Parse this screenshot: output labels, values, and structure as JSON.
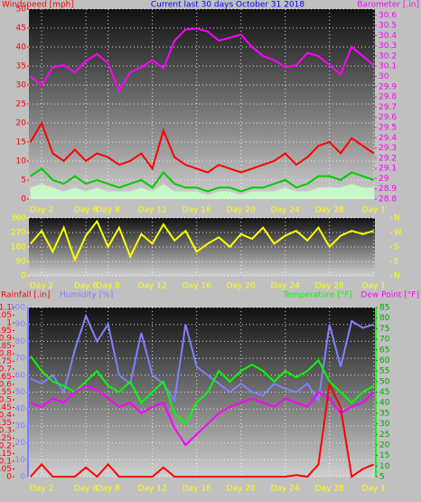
{
  "chart_data": [
    {
      "type": "line",
      "title": "Current last 30 days October 31 2018",
      "y_label": "Windspeed [mph]",
      "y2_label": "Barometer [.in]",
      "x": [
        1,
        2,
        3,
        4,
        5,
        6,
        7,
        8,
        9,
        10,
        11,
        12,
        13,
        14,
        15,
        16,
        17,
        18,
        19,
        20,
        21,
        22,
        23,
        24,
        25,
        26,
        27,
        28,
        29,
        30,
        31,
        32
      ],
      "xlim": [
        0.85,
        32.1
      ],
      "xticks": [
        {
          "value": 2,
          "label": "Day 2"
        },
        {
          "value": 6,
          "label": "Day 6"
        },
        {
          "value": 8,
          "label": "Day 8"
        },
        {
          "value": 12,
          "label": "Day 12"
        },
        {
          "value": 16,
          "label": "Day 16"
        },
        {
          "value": 20,
          "label": "Day 20"
        },
        {
          "value": 24,
          "label": "Day 24"
        },
        {
          "value": 28,
          "label": "Day 28"
        },
        {
          "value": 32,
          "label": "Day 1"
        }
      ],
      "ylim": [
        0,
        50
      ],
      "yticks": [
        0,
        5,
        10,
        15,
        20,
        25,
        30,
        35,
        40,
        45,
        50
      ],
      "y2lim": [
        28.8,
        30.66
      ],
      "y2ticks": [
        28.8,
        28.9,
        29,
        29.1,
        29.2,
        29.3,
        29.4,
        29.5,
        29.6,
        29.7,
        29.8,
        29.9,
        30,
        30.1,
        30.2,
        30.3,
        30.4,
        30.5,
        30.6
      ],
      "grid": true,
      "series": [
        {
          "color": "#c8ffc8",
          "style": "area",
          "values": [
            3,
            4,
            3,
            2,
            3,
            2,
            3,
            2,
            2,
            2,
            3,
            2,
            4,
            2,
            2,
            2,
            1,
            2,
            2,
            1,
            2,
            2,
            2,
            3,
            2,
            2,
            3,
            3,
            3,
            4,
            3,
            3
          ]
        },
        {
          "color": "#ff0000",
          "values": [
            15,
            20,
            12,
            10,
            13,
            10,
            12,
            11,
            9,
            10,
            12,
            8,
            18,
            11,
            9,
            8,
            7,
            9,
            8,
            7,
            8,
            9,
            10,
            12,
            9,
            11,
            14,
            15,
            12,
            16,
            14,
            12
          ]
        },
        {
          "color": "#00cc00",
          "values": [
            6,
            8,
            5,
            4,
            6,
            4,
            5,
            4,
            3,
            4,
            5,
            3,
            7,
            4,
            3,
            3,
            2,
            3,
            3,
            2,
            3,
            3,
            4,
            5,
            3,
            4,
            6,
            6,
            5,
            7,
            6,
            5
          ]
        },
        {
          "color": "#ff00ff",
          "axis": "y2",
          "values": [
            30.0,
            29.91,
            30.09,
            30.11,
            30.04,
            30.15,
            30.22,
            30.13,
            29.86,
            30.04,
            30.09,
            30.16,
            30.08,
            30.35,
            30.46,
            30.47,
            30.44,
            30.35,
            30.38,
            30.41,
            30.29,
            30.2,
            30.16,
            30.09,
            30.11,
            30.23,
            30.2,
            30.11,
            30.02,
            30.29,
            30.2,
            30.11
          ]
        }
      ]
    },
    {
      "type": "line",
      "x": [
        1,
        2,
        3,
        4,
        5,
        6,
        7,
        8,
        9,
        10,
        11,
        12,
        13,
        14,
        15,
        16,
        17,
        18,
        19,
        20,
        21,
        22,
        23,
        24,
        25,
        26,
        27,
        28,
        29,
        30,
        31,
        32
      ],
      "xlim": [
        0.85,
        32.1
      ],
      "xticks": [
        {
          "value": 2,
          "label": "Day 2"
        },
        {
          "value": 6,
          "label": "Day 6"
        },
        {
          "value": 8,
          "label": "Day 8"
        },
        {
          "value": 12,
          "label": "Day 12"
        },
        {
          "value": 16,
          "label": "Day 16"
        },
        {
          "value": 20,
          "label": "Day 20"
        },
        {
          "value": 24,
          "label": "Day 24"
        },
        {
          "value": 28,
          "label": "Day 28"
        },
        {
          "value": 32,
          "label": "Day 1"
        }
      ],
      "ylim": [
        0,
        360
      ],
      "yticks": [
        0,
        90,
        180,
        270,
        360
      ],
      "y2lim": [
        0,
        360
      ],
      "y2ticks": [
        {
          "value": 0,
          "label": "N"
        },
        {
          "value": 90,
          "label": "E"
        },
        {
          "value": 180,
          "label": "S"
        },
        {
          "value": 270,
          "label": "W"
        },
        {
          "value": 360,
          "label": "N"
        }
      ],
      "grid": true,
      "series": [
        {
          "color": "#ffff00",
          "values": [
            200,
            280,
            150,
            300,
            100,
            250,
            340,
            180,
            300,
            120,
            260,
            200,
            320,
            220,
            280,
            150,
            200,
            240,
            180,
            260,
            230,
            300,
            200,
            250,
            280,
            220,
            300,
            180,
            250,
            280,
            260,
            280
          ]
        }
      ]
    },
    {
      "type": "line",
      "y_label": "Rainfall [.in]",
      "y3_label": "Humidity [%]",
      "y2_label": "Temperature [°F]",
      "y4_label": "Dew Point [°F]",
      "x": [
        1,
        2,
        3,
        4,
        5,
        6,
        7,
        8,
        9,
        10,
        11,
        12,
        13,
        14,
        15,
        16,
        17,
        18,
        19,
        20,
        21,
        22,
        23,
        24,
        25,
        26,
        27,
        28,
        29,
        30,
        31,
        32
      ],
      "xlim": [
        0.85,
        32.1
      ],
      "xticks": [
        {
          "value": 2,
          "label": "Day 2"
        },
        {
          "value": 6,
          "label": "Day 6"
        },
        {
          "value": 8,
          "label": "Day 8"
        },
        {
          "value": 12,
          "label": "Day 12"
        },
        {
          "value": 16,
          "label": "Day 16"
        },
        {
          "value": 20,
          "label": "Day 20"
        },
        {
          "value": 24,
          "label": "Day 24"
        },
        {
          "value": 28,
          "label": "Day 28"
        },
        {
          "value": 32,
          "label": "Day 1"
        }
      ],
      "ylim": [
        0,
        1.1
      ],
      "yticks": [
        0,
        0.05,
        0.1,
        0.15,
        0.2,
        0.25,
        0.3,
        0.35,
        0.4,
        0.45,
        0.5,
        0.55,
        0.6,
        0.65,
        0.7,
        0.75,
        0.8,
        0.85,
        0.9,
        0.95,
        1,
        1.05,
        1.1
      ],
      "y3lim": [
        0,
        100
      ],
      "y3ticks": [
        0,
        10,
        20,
        30,
        40,
        50,
        60,
        70,
        80,
        90,
        100
      ],
      "y2lim": [
        5,
        85
      ],
      "y2ticks": [
        5,
        10,
        15,
        20,
        25,
        30,
        35,
        40,
        45,
        50,
        55,
        60,
        65,
        70,
        75,
        80,
        85
      ],
      "grid": true,
      "series": [
        {
          "color": "#8080ff",
          "axis": "y3",
          "values": [
            58,
            55,
            60,
            50,
            75,
            95,
            80,
            90,
            60,
            55,
            85,
            60,
            55,
            45,
            90,
            65,
            60,
            55,
            50,
            55,
            50,
            48,
            55,
            52,
            50,
            55,
            45,
            90,
            65,
            92,
            88,
            90
          ]
        },
        {
          "color": "#00ff00",
          "axis": "y2",
          "values": [
            62,
            55,
            50,
            48,
            45,
            50,
            55,
            48,
            45,
            50,
            40,
            45,
            50,
            35,
            30,
            40,
            45,
            55,
            50,
            55,
            58,
            55,
            50,
            55,
            52,
            55,
            60,
            50,
            45,
            40,
            45,
            48
          ]
        },
        {
          "color": "#ff00ff",
          "axis": "y2",
          "values": [
            40,
            38,
            42,
            40,
            45,
            48,
            46,
            42,
            38,
            40,
            35,
            38,
            40,
            28,
            20,
            25,
            30,
            35,
            38,
            40,
            42,
            40,
            38,
            42,
            40,
            38,
            45,
            42,
            35,
            38,
            40,
            45
          ]
        },
        {
          "color": "#ff0000",
          "values": [
            0,
            0.08,
            0,
            0,
            0,
            0.06,
            0,
            0.08,
            0,
            0,
            0,
            0,
            0.06,
            0,
            0,
            0,
            0,
            0,
            0,
            0,
            0,
            0,
            0,
            0,
            0.01,
            0,
            0.08,
            0.6,
            0.45,
            0,
            0.05,
            0.08
          ]
        }
      ]
    }
  ]
}
